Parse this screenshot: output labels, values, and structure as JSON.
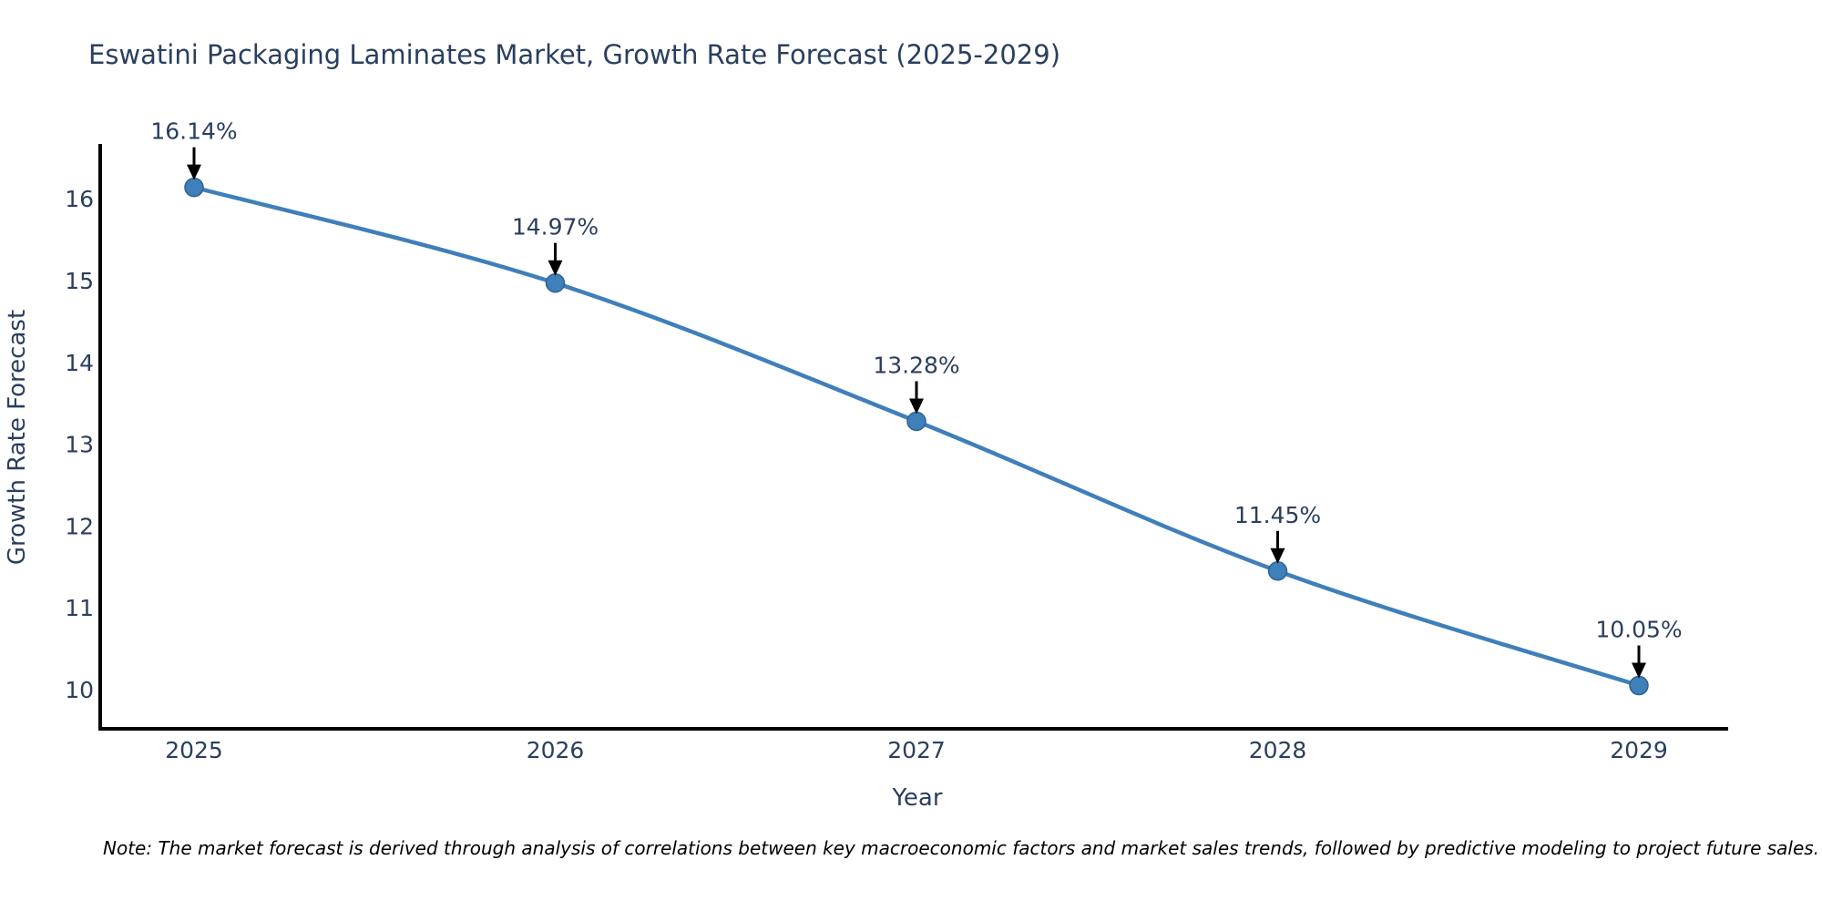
{
  "title": "Eswatini Packaging Laminates Market, Growth Rate Forecast (2025-2029)",
  "note": "Note: The market forecast is derived through analysis of correlations between key macroeconomic factors and market sales trends, followed by predictive modeling to project future sales.",
  "chart_data": {
    "type": "line",
    "title": "Eswatini Packaging Laminates Market, Growth Rate Forecast (2025-2029)",
    "xlabel": "Year",
    "ylabel": "Growth Rate Forecast",
    "x": [
      2025,
      2026,
      2027,
      2028,
      2029
    ],
    "series": [
      {
        "name": "Growth Rate Forecast",
        "values": [
          16.14,
          14.97,
          13.28,
          11.45,
          10.05
        ]
      }
    ],
    "point_labels": [
      "16.14%",
      "14.97%",
      "13.28%",
      "11.45%",
      "10.05%"
    ],
    "xtick_labels": [
      "2025",
      "2026",
      "2027",
      "2028",
      "2029"
    ],
    "yticks": [
      10,
      11,
      12,
      13,
      14,
      15,
      16
    ],
    "ylim": [
      9.5,
      16.65
    ],
    "grid": false,
    "legend_position": "none",
    "line_color": "#3f7fba",
    "marker_color": "#3f7fba",
    "marker_edge_color": "#2f6396",
    "axis_color": "#000000",
    "annotation_arrow_color": "#000000",
    "text_color": "#2a3f5f"
  }
}
